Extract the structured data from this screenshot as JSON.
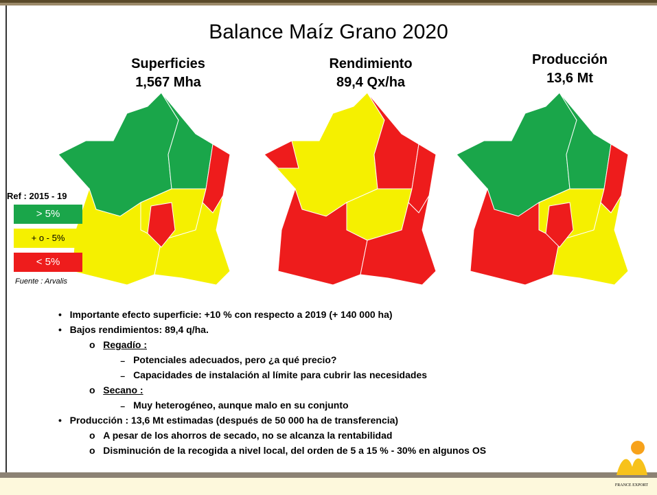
{
  "title": "Balance Maíz Grano 2020",
  "maps": [
    {
      "heading": "Superficies",
      "value": "1,567 Mha"
    },
    {
      "heading": "Rendimiento",
      "value": "89,4 Qx/ha"
    },
    {
      "heading": "Producción",
      "value": "13,6 Mt"
    }
  ],
  "legend": {
    "title": "Ref : 2015 - 19",
    "items": [
      "> 5%",
      "+ o -  5%",
      "< 5%"
    ],
    "source": "Fuente : Arvalis"
  },
  "bullets": [
    {
      "text": "Importante efecto superficie: +10 % con respecto a 2019 (+ 140 000 ha)"
    },
    {
      "text": "Bajos rendimientos: 89,4 q/ha.",
      "children": [
        {
          "label": "Regadío :",
          "children": [
            "Potenciales adecuados, pero ¿a qué precio?",
            "Capacidades de instalación al límite para cubrir las necesidades"
          ]
        },
        {
          "label": "Secano :",
          "children": [
            "Muy heterogéneo, aunque malo en su conjunto"
          ]
        }
      ]
    },
    {
      "text": "Producción : 13,6 Mt estimadas (después de 50 000 ha de transferencia)",
      "children": [
        {
          "label": "A pesar de los ahorros de secado, no se alcanza la rentabilidad"
        },
        {
          "label": "Disminución de la recogida a nivel local, del orden de 5 a 15 % - 30% en algunos OS"
        }
      ]
    }
  ],
  "logo": "FRANCE EXPORT"
}
